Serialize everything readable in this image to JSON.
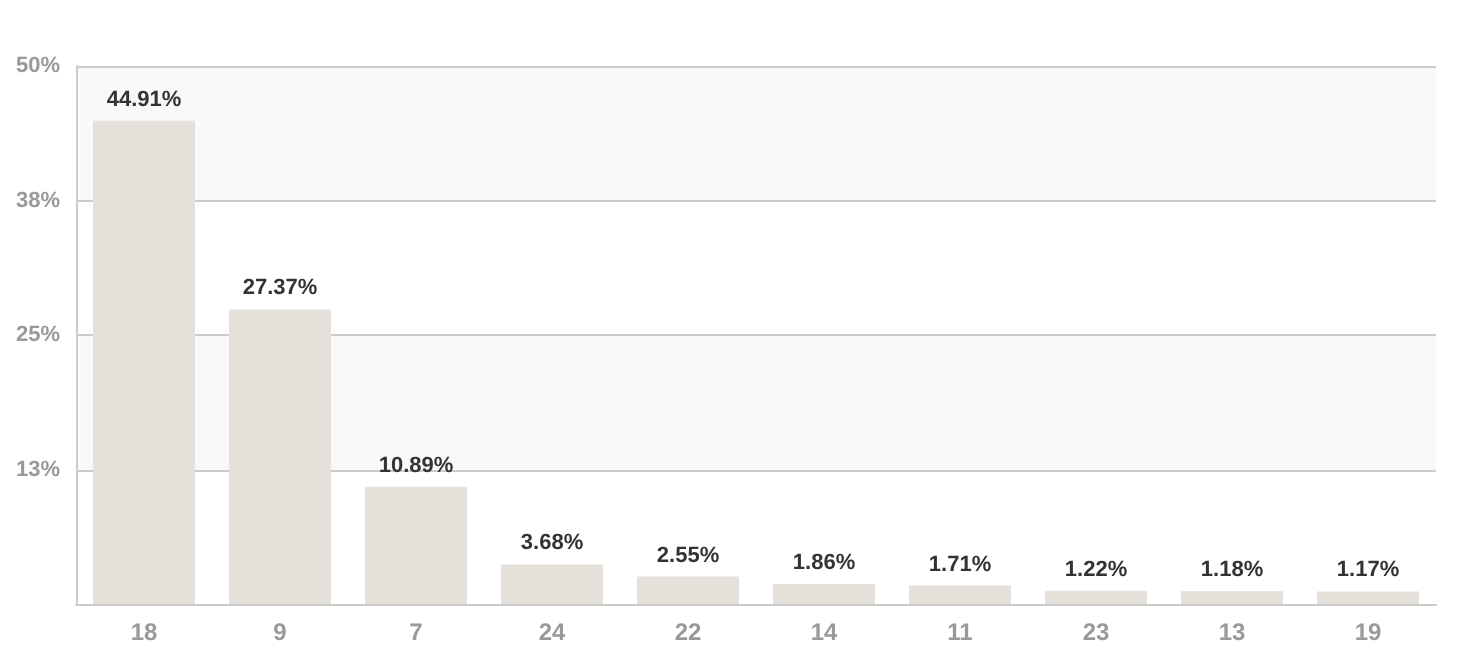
{
  "chart_data": {
    "type": "bar",
    "categories": [
      "18",
      "9",
      "7",
      "24",
      "22",
      "14",
      "11",
      "23",
      "13",
      "19"
    ],
    "values": [
      44.91,
      27.37,
      10.89,
      3.68,
      2.55,
      1.86,
      1.71,
      1.22,
      1.18,
      1.17
    ],
    "value_labels": [
      "44.91%",
      "27.37%",
      "10.89%",
      "3.68%",
      "2.55%",
      "1.86%",
      "1.71%",
      "1.22%",
      "1.18%",
      "1.17%"
    ],
    "color": "#e5e0da",
    "ylim": [
      0,
      50
    ],
    "yticks": [
      {
        "value": 0,
        "label": null
      },
      {
        "value": 12.5,
        "label": "13%"
      },
      {
        "value": 25,
        "label": "25%"
      },
      {
        "value": 37.5,
        "label": "38%"
      },
      {
        "value": 50,
        "label": "50%"
      }
    ],
    "grid": "y"
  }
}
